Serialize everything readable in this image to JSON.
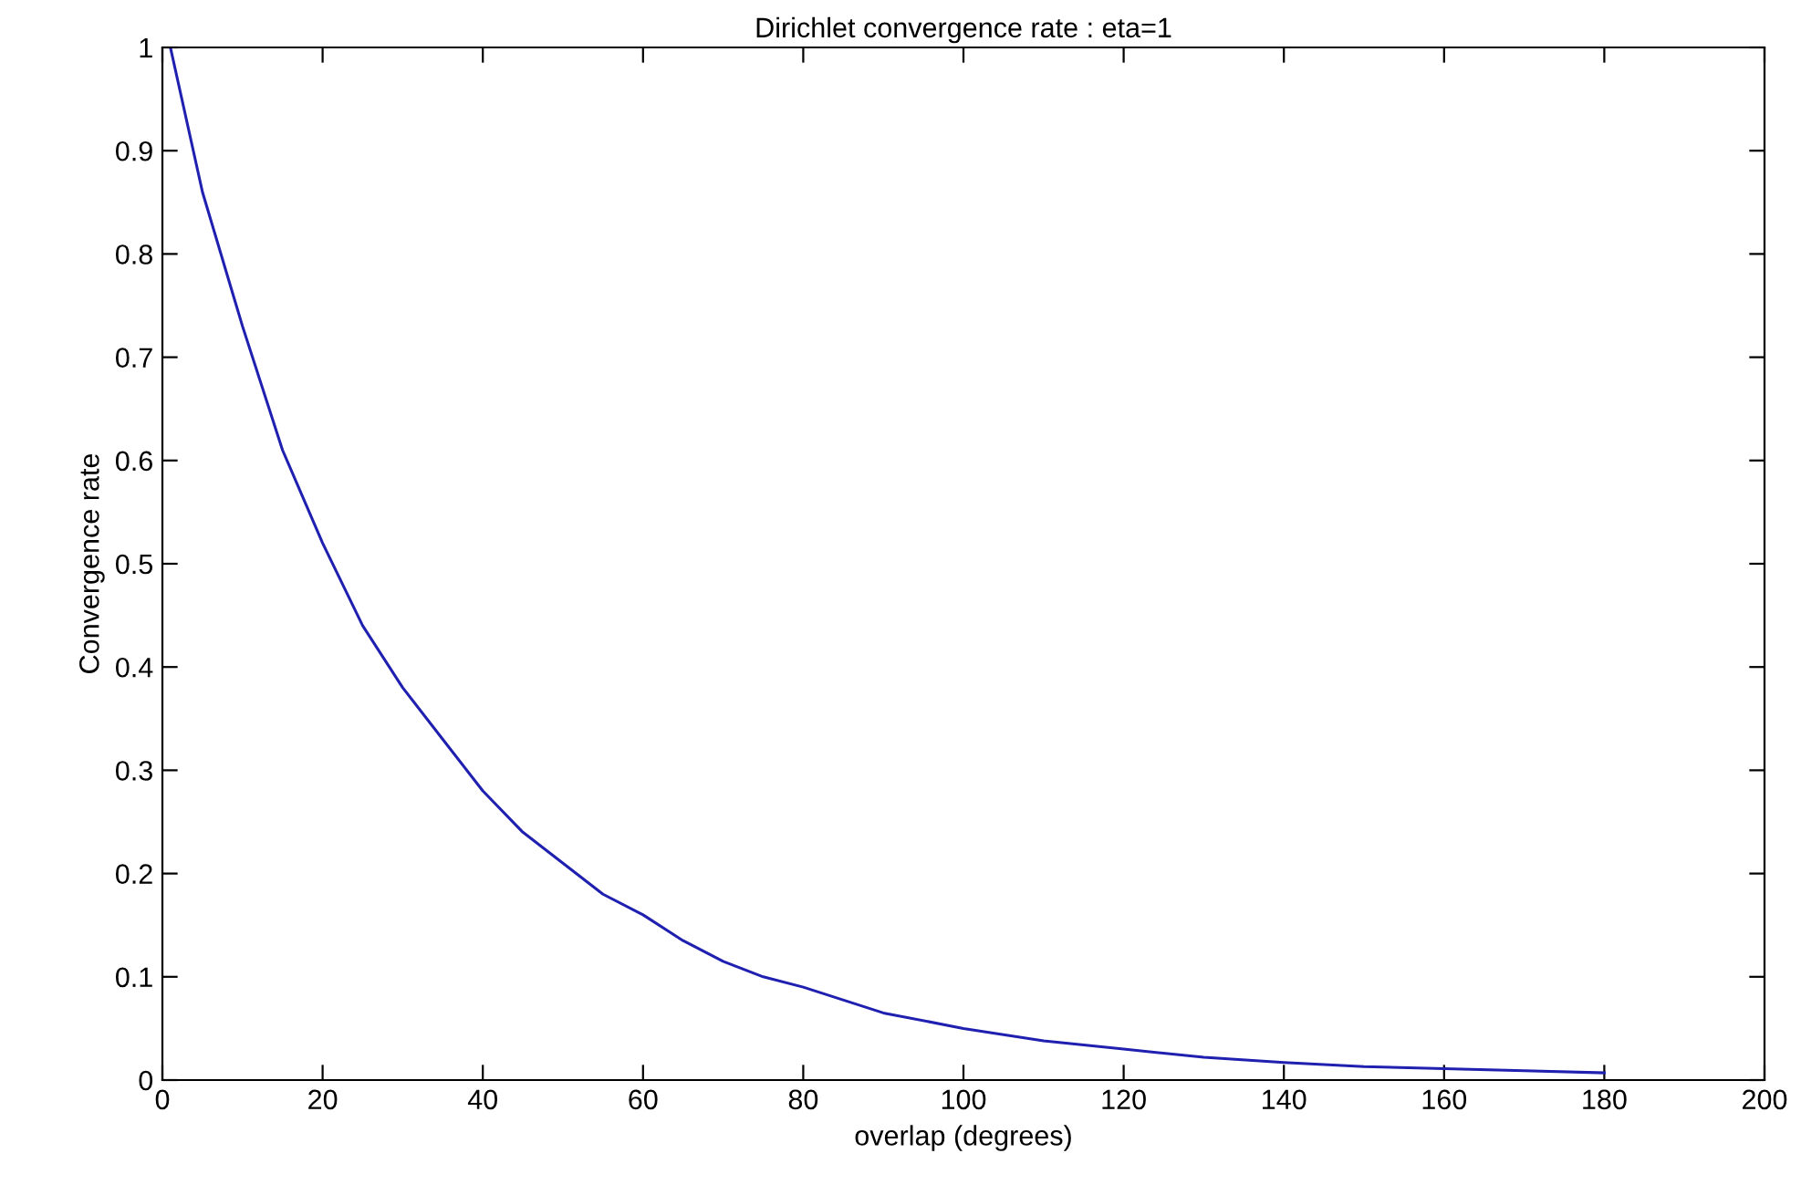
{
  "chart_data": {
    "type": "line",
    "title": "Dirichlet convergence rate : eta=1",
    "xlabel": "overlap (degrees)",
    "ylabel": "Convergence rate",
    "x": [
      1,
      5,
      10,
      15,
      20,
      25,
      30,
      35,
      40,
      45,
      50,
      55,
      60,
      65,
      70,
      75,
      80,
      90,
      100,
      110,
      120,
      130,
      140,
      150,
      160,
      170,
      180
    ],
    "series": [
      {
        "color": "#2020b0",
        "values": [
          1.0,
          0.86,
          0.73,
          0.61,
          0.52,
          0.44,
          0.38,
          0.33,
          0.28,
          0.24,
          0.21,
          0.18,
          0.16,
          0.135,
          0.115,
          0.1,
          0.09,
          0.065,
          0.05,
          0.038,
          0.03,
          0.022,
          0.017,
          0.013,
          0.011,
          0.009,
          0.007
        ]
      }
    ],
    "xlim": [
      0,
      200
    ],
    "xticks": [
      0,
      20,
      40,
      60,
      80,
      100,
      120,
      140,
      160,
      180,
      200
    ],
    "ylim": [
      0,
      1
    ],
    "yticks": [
      0,
      0.1,
      0.2,
      0.3,
      0.4,
      0.5,
      0.6,
      0.7,
      0.8,
      0.9,
      1
    ],
    "grid": false,
    "legend": false,
    "marker": "none",
    "line_style": "solid"
  }
}
